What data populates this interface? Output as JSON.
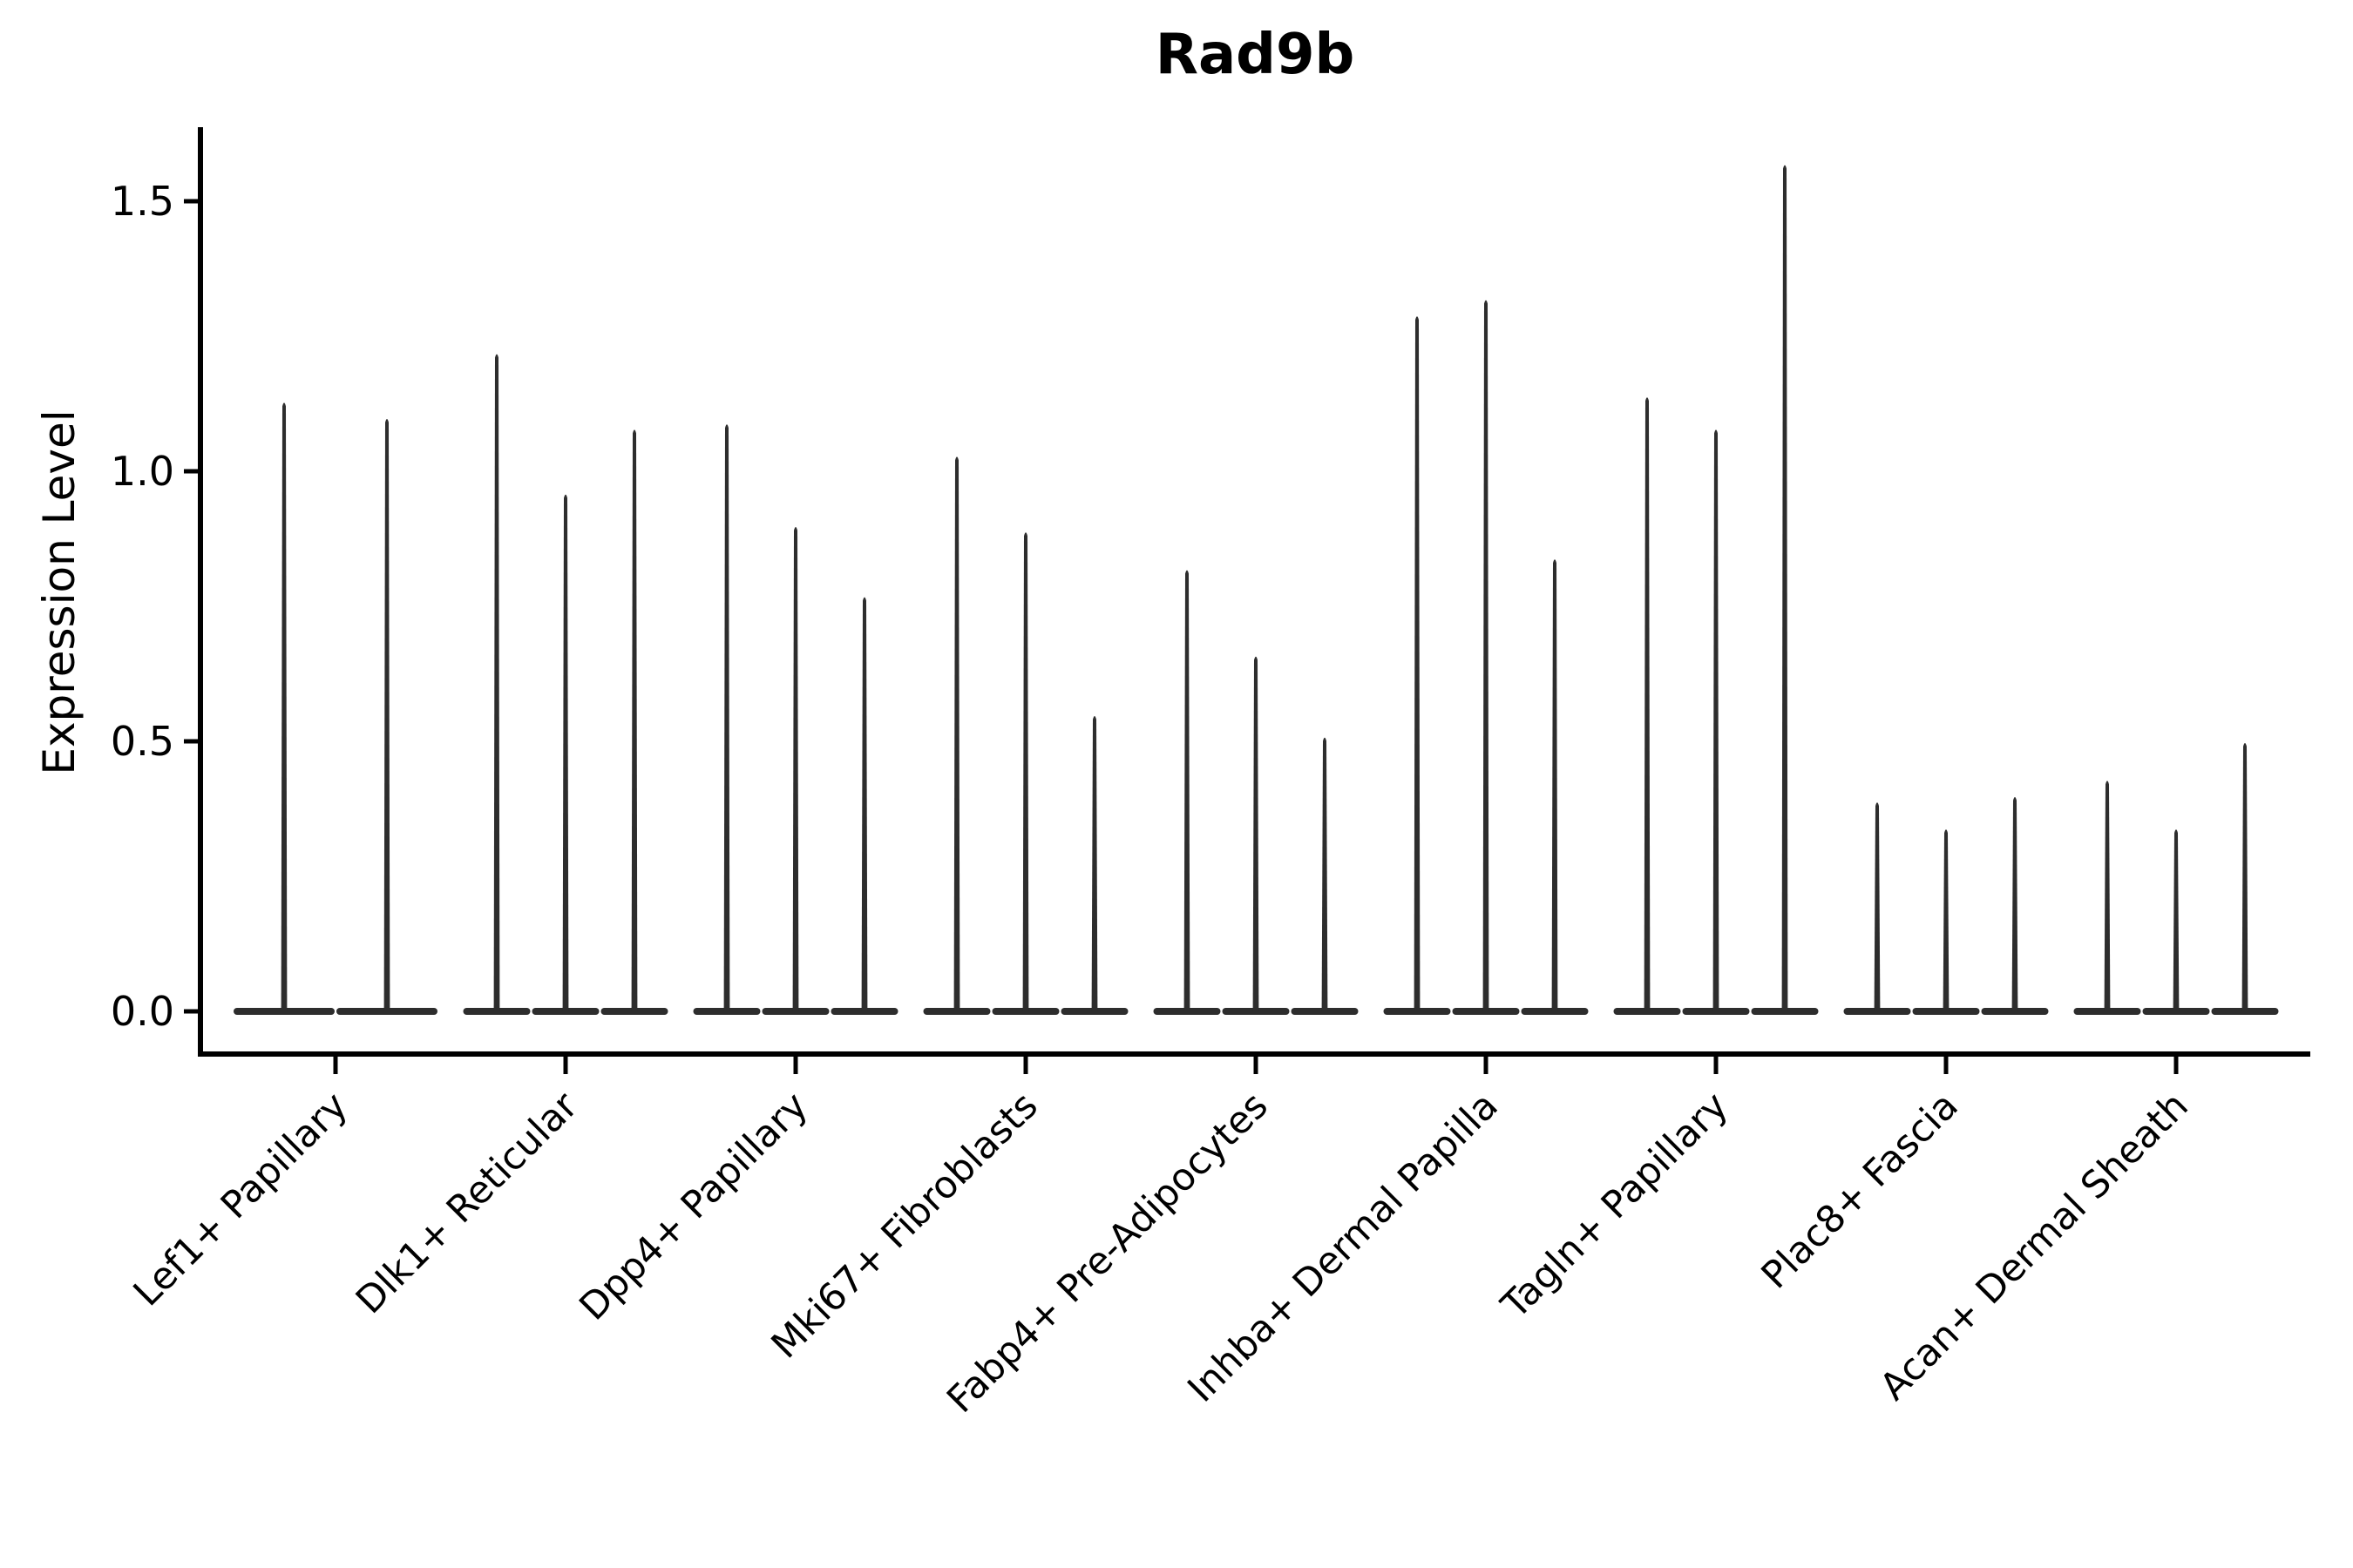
{
  "chart_data": {
    "type": "violin",
    "title": "Rad9b",
    "ylabel": "Expression Level",
    "xlabel": "",
    "ylim": [
      -0.08,
      1.64
    ],
    "yticks": [
      0.0,
      0.5,
      1.0,
      1.5
    ],
    "ytick_labels": [
      "0.0",
      "0.5",
      "1.0",
      "1.5"
    ],
    "grid": false,
    "legend": "none",
    "colors": {
      "violin": "#2d2d2d",
      "axis": "#000000",
      "text": "#000000",
      "background": "#ffffff"
    },
    "categories": [
      "Lef1+ Papillary",
      "Dlk1+ Reticular",
      "Dpp4+ Papillary",
      "Mki67+ Fibroblasts",
      "Fabp4+ Pre-Adipocytes",
      "Inhba+ Dermal Papilla",
      "Tagln+ Papillary",
      "Plac8+ Fascia",
      "Acan+ Dermal Sheath"
    ],
    "series": [
      {
        "category": "Lef1+ Papillary",
        "violin_maxima": [
          1.13,
          1.1
        ],
        "baseline_value": 0.0
      },
      {
        "category": "Dlk1+ Reticular",
        "violin_maxima": [
          1.22,
          0.96,
          1.08
        ],
        "baseline_value": 0.0
      },
      {
        "category": "Dpp4+ Papillary",
        "violin_maxima": [
          1.09,
          0.9,
          0.77
        ],
        "baseline_value": 0.0
      },
      {
        "category": "Mki67+ Fibroblasts",
        "violin_maxima": [
          1.03,
          0.89,
          0.55
        ],
        "baseline_value": 0.0
      },
      {
        "category": "Fabp4+ Pre-Adipocytes",
        "violin_maxima": [
          0.82,
          0.66,
          0.51
        ],
        "baseline_value": 0.0
      },
      {
        "category": "Inhba+ Dermal Papilla",
        "violin_maxima": [
          1.29,
          1.32,
          0.84
        ],
        "baseline_value": 0.0
      },
      {
        "category": "Tagln+ Papillary",
        "violin_maxima": [
          1.14,
          1.08,
          1.57
        ],
        "baseline_value": 0.0
      },
      {
        "category": "Plac8+ Fascia",
        "violin_maxima": [
          0.39,
          0.34,
          0.4
        ],
        "baseline_value": 0.0
      },
      {
        "category": "Acan+ Dermal Sheath",
        "violin_maxima": [
          0.43,
          0.34,
          0.5
        ],
        "baseline_value": 0.0
      }
    ]
  }
}
